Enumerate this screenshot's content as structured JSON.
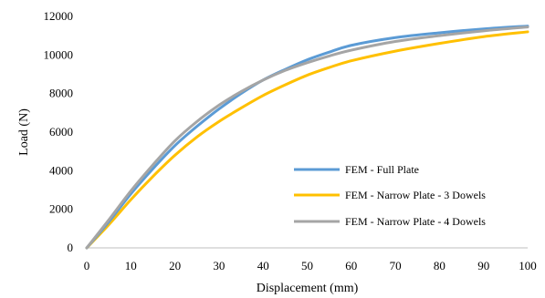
{
  "chart_data": {
    "type": "line",
    "title": "",
    "xlabel": "Displacement (mm)",
    "ylabel": "Load (N)",
    "xlim": [
      0,
      100
    ],
    "ylim": [
      0,
      12000
    ],
    "x_ticks": [
      0,
      10,
      20,
      30,
      40,
      50,
      60,
      70,
      80,
      90,
      100
    ],
    "y_ticks": [
      0,
      2000,
      4000,
      6000,
      8000,
      10000,
      12000
    ],
    "x_tick_labels": [
      "0",
      "10",
      "20",
      "30",
      "40",
      "50",
      "60",
      "70",
      "80",
      "90",
      "100"
    ],
    "y_tick_labels": [
      "0",
      "2000",
      "4000",
      "6000",
      "8000",
      "10000",
      "12000"
    ],
    "grid": false,
    "legend_position": "lower-right",
    "series": [
      {
        "name": "FEM - Full Plate",
        "color": "#5B9BD5",
        "x": [
          0,
          5,
          10,
          15,
          20,
          25,
          30,
          35,
          40,
          45,
          50,
          55,
          60,
          70,
          80,
          90,
          100
        ],
        "y": [
          0,
          1350,
          2800,
          4100,
          5300,
          6300,
          7200,
          8000,
          8700,
          9250,
          9750,
          10150,
          10500,
          10900,
          11150,
          11350,
          11500
        ]
      },
      {
        "name": "FEM - Narrow Plate - 3 Dowels",
        "color": "#FFC000",
        "x": [
          0,
          5,
          10,
          15,
          20,
          25,
          30,
          35,
          40,
          45,
          50,
          55,
          60,
          70,
          80,
          90,
          100
        ],
        "y": [
          0,
          1200,
          2500,
          3700,
          4800,
          5750,
          6550,
          7250,
          7900,
          8450,
          8950,
          9350,
          9700,
          10200,
          10600,
          10950,
          11200
        ]
      },
      {
        "name": "FEM - Narrow Plate - 4 Dowels",
        "color": "#A5A5A5",
        "x": [
          0,
          5,
          10,
          15,
          20,
          25,
          30,
          35,
          40,
          45,
          50,
          55,
          60,
          70,
          80,
          90,
          100
        ],
        "y": [
          0,
          1450,
          2950,
          4300,
          5550,
          6550,
          7400,
          8100,
          8700,
          9200,
          9600,
          9950,
          10250,
          10700,
          11000,
          11250,
          11450
        ]
      }
    ]
  }
}
